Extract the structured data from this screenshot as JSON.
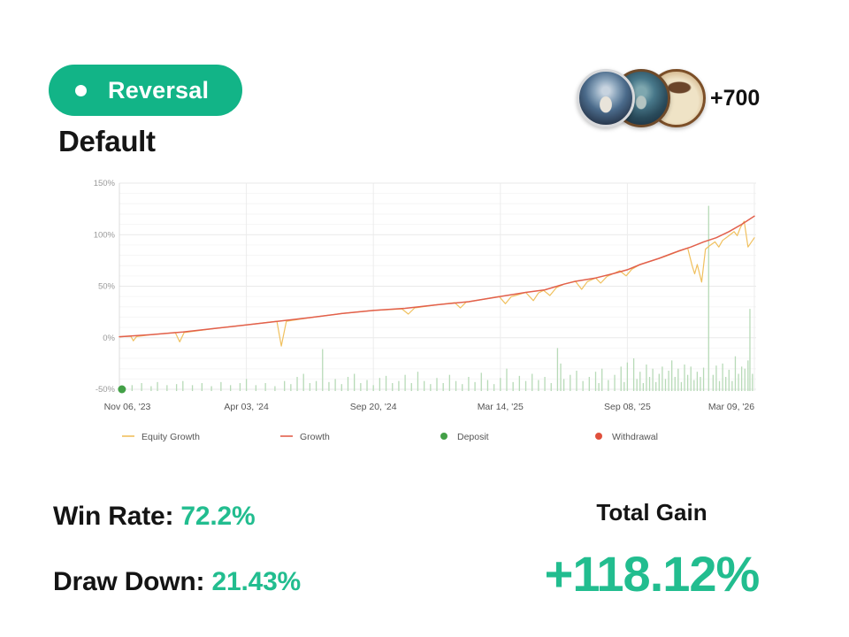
{
  "badge": {
    "label": "Reversal"
  },
  "title": "Default",
  "followers": {
    "count_label": "+700",
    "avatars": [
      "wizard-coin",
      "sailor-coin",
      "bronze-coin"
    ]
  },
  "colors": {
    "badge_green": "#12b487",
    "value_green": "#22bd8f",
    "growth_line": "#e2604c",
    "equity_line": "#f0c05e",
    "deposit_dot": "#43a047",
    "withdrawal_dot": "#e0503c",
    "bars_green": "#b7dab7"
  },
  "stats": {
    "win_rate_label": "Win Rate:",
    "win_rate_value": "72.2%",
    "draw_down_label": "Draw Down:",
    "draw_down_value": "21.43%",
    "total_gain_label": "Total Gain",
    "total_gain_value": "+118.12%"
  },
  "chart_data": {
    "type": "line",
    "title": "",
    "xlabel": "",
    "ylabel": "",
    "grid": true,
    "legend_position": "bottom",
    "ylim": [
      -50,
      150
    ],
    "y_ticks": [
      "150%",
      "100%",
      "50%",
      "0%",
      "-50%"
    ],
    "x_ticks": [
      "Nov 06, '23",
      "Apr 03, '24",
      "Sep 20, '24",
      "Mar 14, '25",
      "Sep 08, '25",
      "Mar 09, '26"
    ],
    "series": [
      {
        "name": "Equity Growth",
        "color": "#f0c05e",
        "width": 1.2,
        "points": [
          [
            0,
            1
          ],
          [
            0.018,
            1.5
          ],
          [
            0.022,
            -3
          ],
          [
            0.027,
            1.2
          ],
          [
            0.05,
            3
          ],
          [
            0.088,
            5
          ],
          [
            0.095,
            -4
          ],
          [
            0.102,
            5
          ],
          [
            0.15,
            9
          ],
          [
            0.2,
            12.5
          ],
          [
            0.248,
            16
          ],
          [
            0.255,
            -8
          ],
          [
            0.263,
            16
          ],
          [
            0.3,
            19.5
          ],
          [
            0.35,
            23.5
          ],
          [
            0.4,
            26.5
          ],
          [
            0.445,
            28
          ],
          [
            0.455,
            23
          ],
          [
            0.465,
            29
          ],
          [
            0.5,
            32
          ],
          [
            0.528,
            34
          ],
          [
            0.537,
            29
          ],
          [
            0.546,
            34.5
          ],
          [
            0.57,
            37
          ],
          [
            0.598,
            40
          ],
          [
            0.608,
            33
          ],
          [
            0.617,
            39.8
          ],
          [
            0.64,
            44
          ],
          [
            0.652,
            36
          ],
          [
            0.66,
            43.5
          ],
          [
            0.668,
            46
          ],
          [
            0.678,
            41
          ],
          [
            0.688,
            48.5
          ],
          [
            0.7,
            52
          ],
          [
            0.718,
            55
          ],
          [
            0.728,
            47
          ],
          [
            0.737,
            54.5
          ],
          [
            0.75,
            58
          ],
          [
            0.758,
            53
          ],
          [
            0.768,
            59.5
          ],
          [
            0.788,
            65
          ],
          [
            0.798,
            60
          ],
          [
            0.807,
            66.5
          ],
          [
            0.82,
            71
          ],
          [
            0.84,
            75
          ],
          [
            0.86,
            79
          ],
          [
            0.875,
            82.5
          ],
          [
            0.895,
            87
          ],
          [
            0.902,
            70
          ],
          [
            0.906,
            62
          ],
          [
            0.91,
            71
          ],
          [
            0.917,
            54
          ],
          [
            0.923,
            86
          ],
          [
            0.93,
            89.5
          ],
          [
            0.938,
            93
          ],
          [
            0.944,
            88
          ],
          [
            0.95,
            94.5
          ],
          [
            0.96,
            99
          ],
          [
            0.968,
            103
          ],
          [
            0.973,
            99
          ],
          [
            0.978,
            107
          ],
          [
            0.984,
            113
          ],
          [
            0.99,
            88
          ],
          [
            1,
            97
          ]
        ]
      },
      {
        "name": "Growth",
        "color": "#e2604c",
        "width": 1.5,
        "points": [
          [
            0,
            1
          ],
          [
            0.05,
            3
          ],
          [
            0.1,
            5.5
          ],
          [
            0.15,
            9
          ],
          [
            0.2,
            12.5
          ],
          [
            0.25,
            16
          ],
          [
            0.3,
            19.5
          ],
          [
            0.35,
            23.5
          ],
          [
            0.4,
            26.5
          ],
          [
            0.45,
            28.5
          ],
          [
            0.5,
            32
          ],
          [
            0.55,
            35
          ],
          [
            0.6,
            40
          ],
          [
            0.64,
            44
          ],
          [
            0.67,
            46.5
          ],
          [
            0.7,
            52
          ],
          [
            0.72,
            55
          ],
          [
            0.75,
            58
          ],
          [
            0.78,
            62.5
          ],
          [
            0.8,
            66
          ],
          [
            0.82,
            71
          ],
          [
            0.85,
            77
          ],
          [
            0.88,
            84
          ],
          [
            0.9,
            88
          ],
          [
            0.92,
            93
          ],
          [
            0.94,
            97
          ],
          [
            0.96,
            103
          ],
          [
            0.98,
            110
          ],
          [
            1,
            118
          ]
        ]
      }
    ],
    "deposits": [
      {
        "t": 0.004,
        "v": -50
      }
    ],
    "withdrawals": [],
    "bars": {
      "color": "#b7dab7",
      "baseline": -51,
      "points": [
        [
          0.02,
          -46
        ],
        [
          0.035,
          -44
        ],
        [
          0.05,
          -47
        ],
        [
          0.06,
          -43
        ],
        [
          0.075,
          -46
        ],
        [
          0.09,
          -45
        ],
        [
          0.1,
          -42
        ],
        [
          0.115,
          -46
        ],
        [
          0.13,
          -44
        ],
        [
          0.145,
          -47
        ],
        [
          0.16,
          -43
        ],
        [
          0.175,
          -46
        ],
        [
          0.19,
          -44
        ],
        [
          0.2,
          -40
        ],
        [
          0.215,
          -46
        ],
        [
          0.23,
          -44
        ],
        [
          0.245,
          -47
        ],
        [
          0.26,
          -42
        ],
        [
          0.27,
          -45
        ],
        [
          0.28,
          -38
        ],
        [
          0.29,
          -35
        ],
        [
          0.3,
          -44
        ],
        [
          0.31,
          -42
        ],
        [
          0.32,
          -11
        ],
        [
          0.33,
          -43
        ],
        [
          0.34,
          -40
        ],
        [
          0.35,
          -45
        ],
        [
          0.36,
          -38
        ],
        [
          0.37,
          -35
        ],
        [
          0.38,
          -44
        ],
        [
          0.39,
          -41
        ],
        [
          0.4,
          -46
        ],
        [
          0.41,
          -39
        ],
        [
          0.42,
          -37
        ],
        [
          0.43,
          -44
        ],
        [
          0.44,
          -42
        ],
        [
          0.45,
          -36
        ],
        [
          0.46,
          -44
        ],
        [
          0.47,
          -33
        ],
        [
          0.48,
          -42
        ],
        [
          0.49,
          -45
        ],
        [
          0.5,
          -39
        ],
        [
          0.51,
          -44
        ],
        [
          0.52,
          -36
        ],
        [
          0.53,
          -42
        ],
        [
          0.54,
          -45
        ],
        [
          0.55,
          -38
        ],
        [
          0.56,
          -43
        ],
        [
          0.57,
          -34
        ],
        [
          0.58,
          -41
        ],
        [
          0.59,
          -45
        ],
        [
          0.6,
          -39
        ],
        [
          0.61,
          -30
        ],
        [
          0.62,
          -43
        ],
        [
          0.63,
          -37
        ],
        [
          0.64,
          -42
        ],
        [
          0.65,
          -35
        ],
        [
          0.66,
          -41
        ],
        [
          0.67,
          -38
        ],
        [
          0.68,
          -44
        ],
        [
          0.69,
          -10
        ],
        [
          0.695,
          -25
        ],
        [
          0.7,
          -40
        ],
        [
          0.71,
          -36
        ],
        [
          0.72,
          -32
        ],
        [
          0.73,
          -42
        ],
        [
          0.74,
          -38
        ],
        [
          0.75,
          -33
        ],
        [
          0.755,
          -44
        ],
        [
          0.76,
          -30
        ],
        [
          0.77,
          -41
        ],
        [
          0.78,
          -36
        ],
        [
          0.79,
          -28
        ],
        [
          0.795,
          -43
        ],
        [
          0.8,
          -24
        ],
        [
          0.81,
          -20
        ],
        [
          0.815,
          -40
        ],
        [
          0.82,
          -33
        ],
        [
          0.825,
          -44
        ],
        [
          0.83,
          -26
        ],
        [
          0.835,
          -38
        ],
        [
          0.84,
          -30
        ],
        [
          0.845,
          -43
        ],
        [
          0.85,
          -35
        ],
        [
          0.855,
          -28
        ],
        [
          0.86,
          -40
        ],
        [
          0.865,
          -32
        ],
        [
          0.87,
          -22
        ],
        [
          0.875,
          -38
        ],
        [
          0.88,
          -30
        ],
        [
          0.885,
          -43
        ],
        [
          0.89,
          -26
        ],
        [
          0.895,
          -36
        ],
        [
          0.9,
          -28
        ],
        [
          0.905,
          -41
        ],
        [
          0.91,
          -33
        ],
        [
          0.915,
          -38
        ],
        [
          0.92,
          -29
        ],
        [
          0.928,
          128
        ],
        [
          0.935,
          -36
        ],
        [
          0.94,
          -27
        ],
        [
          0.945,
          -42
        ],
        [
          0.95,
          -25
        ],
        [
          0.955,
          -38
        ],
        [
          0.96,
          -31
        ],
        [
          0.965,
          -42
        ],
        [
          0.97,
          -18
        ],
        [
          0.975,
          -35
        ],
        [
          0.98,
          -28
        ],
        [
          0.985,
          -30
        ],
        [
          0.99,
          -22
        ],
        [
          0.993,
          28
        ],
        [
          0.997,
          -35
        ]
      ]
    },
    "legend": [
      {
        "label": "Equity Growth",
        "marker": "line",
        "color": "#f0c05e"
      },
      {
        "label": "Growth",
        "marker": "line",
        "color": "#e2604c"
      },
      {
        "label": "Deposit",
        "marker": "dot",
        "color": "#43a047"
      },
      {
        "label": "Withdrawal",
        "marker": "dot",
        "color": "#e0503c"
      }
    ]
  }
}
